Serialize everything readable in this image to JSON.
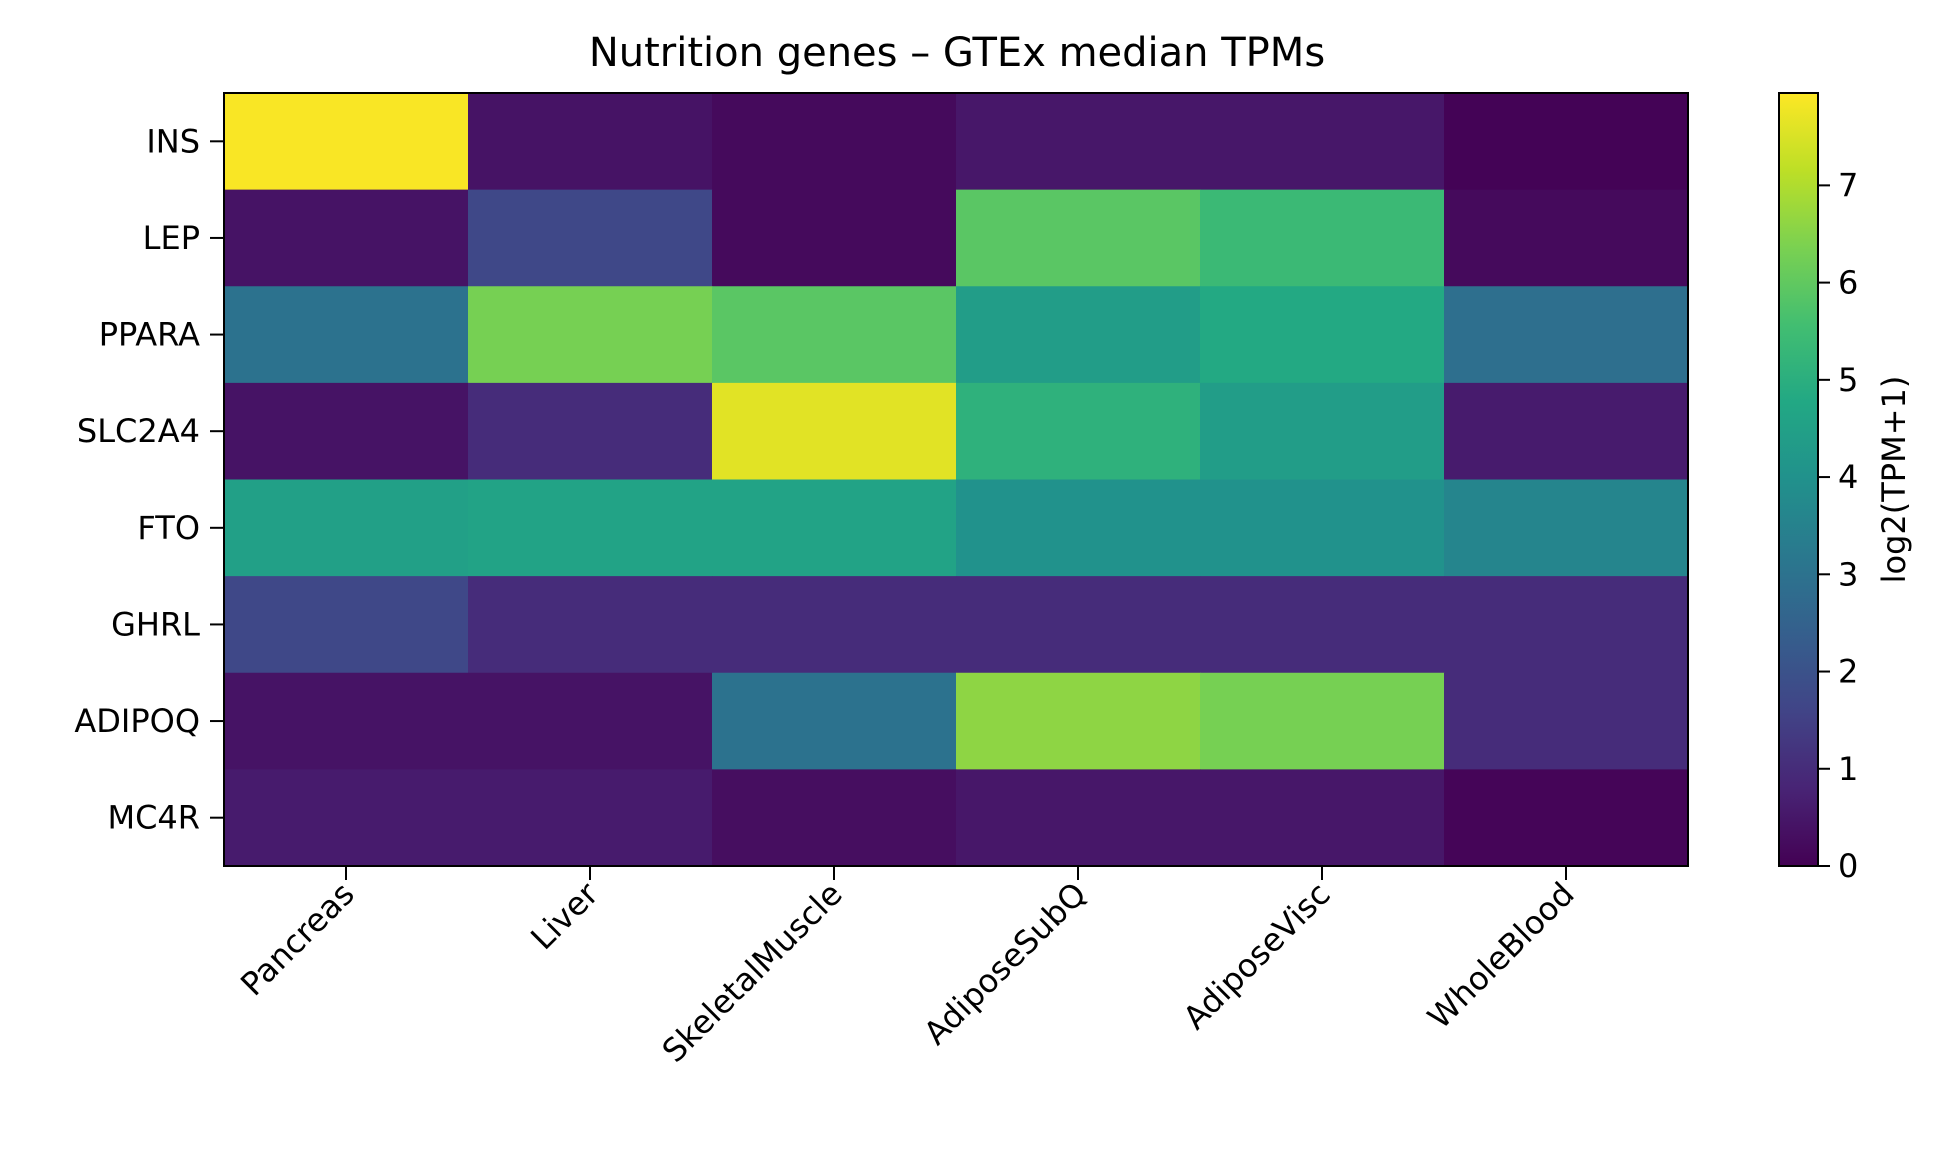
{
  "chart_data": {
    "type": "heatmap",
    "title": "Nutrition genes – GTEx median TPMs",
    "x_categories": [
      "Pancreas",
      "Liver",
      "SkeletalMuscle",
      "AdiposeSubQ",
      "AdiposeVisc",
      "WholeBlood"
    ],
    "y_categories": [
      "INS",
      "LEP",
      "PPARA",
      "SLC2A4",
      "FTO",
      "GHRL",
      "ADIPOQ",
      "MC4R"
    ],
    "values": [
      [
        7.9,
        0.4,
        0.2,
        0.5,
        0.5,
        0.05
      ],
      [
        0.4,
        1.7,
        0.2,
        5.9,
        5.4,
        0.2
      ],
      [
        3.0,
        6.3,
        5.9,
        4.4,
        4.8,
        2.9
      ],
      [
        0.4,
        1.0,
        7.6,
        5.1,
        4.4,
        0.6
      ],
      [
        4.5,
        4.6,
        4.6,
        4.0,
        4.0,
        3.6
      ],
      [
        1.7,
        1.0,
        1.0,
        1.0,
        1.0,
        1.0
      ],
      [
        0.4,
        0.4,
        3.0,
        6.6,
        6.3,
        1.0
      ],
      [
        0.6,
        0.6,
        0.3,
        0.5,
        0.5,
        0.1
      ]
    ],
    "colorbar": {
      "label": "log2(TPM+1)",
      "range": [
        0,
        7.95
      ],
      "ticks": [
        0,
        1,
        2,
        3,
        4,
        5,
        6,
        7
      ],
      "colormap": "viridis"
    }
  }
}
